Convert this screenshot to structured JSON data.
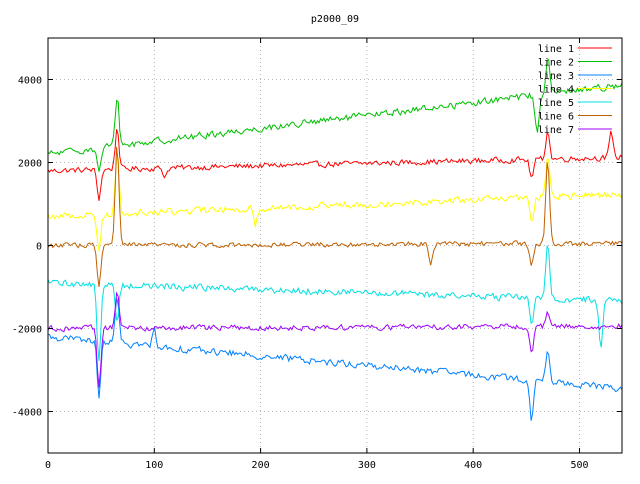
{
  "chart_data": {
    "type": "line",
    "title": "p2000_09",
    "xlabel": "",
    "ylabel": "",
    "xlim": [
      0,
      540
    ],
    "ylim": [
      -5000,
      5000
    ],
    "xticks": [
      0,
      100,
      200,
      300,
      400,
      500
    ],
    "yticks": [
      -4000,
      -2000,
      0,
      2000,
      4000
    ],
    "xtick_labels": [
      "0",
      "100",
      "200",
      "300",
      "400",
      "500"
    ],
    "ytick_labels": [
      "-4000",
      "-2000",
      "0",
      "2000",
      "4000"
    ],
    "grid": true,
    "legend_position": "top-right",
    "series": [
      {
        "name": "line 1",
        "color": "#ff0000",
        "base": 1800,
        "trend": [
          0,
          0.6
        ],
        "noise": 90,
        "spikes": [
          [
            48,
            -700
          ],
          [
            65,
            1000
          ],
          [
            110,
            -200
          ],
          [
            455,
            -450
          ],
          [
            470,
            700
          ],
          [
            530,
            600
          ]
        ]
      },
      {
        "name": "line 2",
        "color": "#00c000",
        "base": 2200,
        "trend": [
          0,
          3.1
        ],
        "noise": 110,
        "spikes": [
          [
            48,
            -600
          ],
          [
            65,
            1200
          ],
          [
            460,
            -900
          ],
          [
            470,
            900
          ]
        ]
      },
      {
        "name": "line 3",
        "color": "#0080ff",
        "base": -2200,
        "trend": [
          0,
          -2.3
        ],
        "noise": 110,
        "spikes": [
          [
            48,
            -1300
          ],
          [
            65,
            1100
          ],
          [
            100,
            400
          ],
          [
            455,
            -1000
          ],
          [
            470,
            800
          ]
        ]
      },
      {
        "name": "line 4",
        "color": "#ffff00",
        "base": 700,
        "trend": [
          0,
          1.0
        ],
        "noise": 110,
        "spikes": [
          [
            48,
            -900
          ],
          [
            65,
            1500
          ],
          [
            195,
            -400
          ],
          [
            455,
            -600
          ],
          [
            470,
            1000
          ]
        ]
      },
      {
        "name": "line 5",
        "color": "#00e0e0",
        "base": -900,
        "trend": [
          0,
          -0.8
        ],
        "noise": 110,
        "spikes": [
          [
            48,
            -1900
          ],
          [
            65,
            -900
          ],
          [
            455,
            -700
          ],
          [
            470,
            1400
          ],
          [
            520,
            -1100
          ]
        ]
      },
      {
        "name": "line 6",
        "color": "#c06000",
        "base": 0,
        "trend": [
          0,
          0.1
        ],
        "noise": 80,
        "spikes": [
          [
            48,
            -1000
          ],
          [
            65,
            2400
          ],
          [
            360,
            -450
          ],
          [
            455,
            -500
          ],
          [
            470,
            2100
          ]
        ]
      },
      {
        "name": "line 7",
        "color": "#a000ff",
        "base": -2000,
        "trend": [
          0,
          0.1
        ],
        "noise": 90,
        "spikes": [
          [
            48,
            -1500
          ],
          [
            65,
            900
          ],
          [
            455,
            -600
          ],
          [
            470,
            300
          ]
        ]
      }
    ]
  }
}
